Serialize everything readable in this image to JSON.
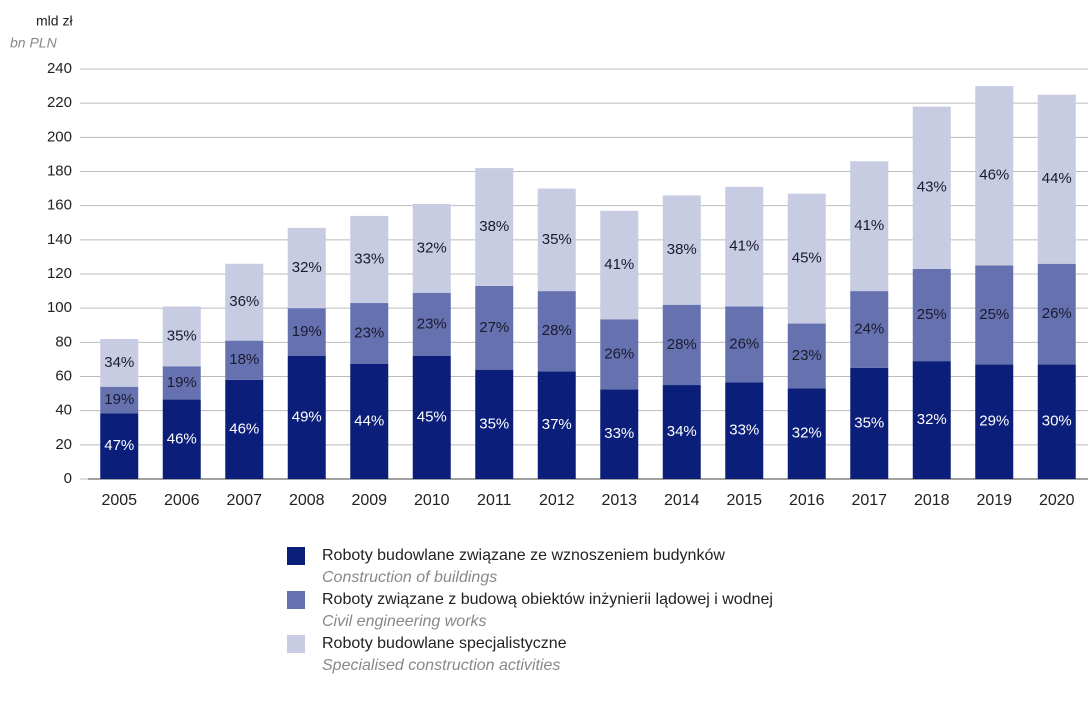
{
  "chart_data": {
    "type": "stacked_bar",
    "y_label": "mld zł",
    "y_label_en": "bn PLN",
    "categories": [
      "2005",
      "2006",
      "2007",
      "2008",
      "2009",
      "2010",
      "2011",
      "2012",
      "2013",
      "2014",
      "2015",
      "2016",
      "2017",
      "2018",
      "2019",
      "2020"
    ],
    "series": [
      {
        "name": "Roboty budowlane związane ze wznoszeniem budynków",
        "name_en": "Construction of buildings",
        "color": "#0b1f7a",
        "label_color": "#ffffff",
        "values": [
          38.5,
          46.5,
          58,
          72,
          67.5,
          72,
          64,
          63,
          52.5,
          55,
          56.5,
          53,
          65,
          69,
          67,
          67
        ],
        "share_labels": [
          "47%",
          "46%",
          "46%",
          "49%",
          "44%",
          "45%",
          "35%",
          "37%",
          "33%",
          "34%",
          "33%",
          "32%",
          "35%",
          "32%",
          "29%",
          "30%"
        ]
      },
      {
        "name": "Roboty związane z budową obiektów inżynierii lądowej i wodnej",
        "name_en": "Civil engineering works",
        "color": "#6672b0",
        "label_color": "#1a1a2e",
        "values": [
          15.5,
          19.5,
          23,
          28,
          35.5,
          37,
          49,
          47,
          41,
          47,
          44.5,
          38,
          45,
          54,
          58,
          59
        ],
        "share_labels": [
          "19%",
          "19%",
          "18%",
          "19%",
          "23%",
          "23%",
          "27%",
          "28%",
          "26%",
          "28%",
          "26%",
          "23%",
          "24%",
          "25%",
          "25%",
          "26%"
        ]
      },
      {
        "name": "Roboty budowlane specjalistyczne",
        "name_en": "Specialised construction activities",
        "color": "#c8cce3",
        "label_color": "#1a1a2e",
        "values": [
          28,
          35,
          45,
          47,
          51,
          52,
          69,
          60,
          63.5,
          64,
          70,
          76,
          76,
          95,
          105,
          99
        ],
        "share_labels": [
          "34%",
          "35%",
          "36%",
          "32%",
          "33%",
          "32%",
          "38%",
          "35%",
          "41%",
          "38%",
          "41%",
          "45%",
          "41%",
          "43%",
          "46%",
          "44%"
        ]
      }
    ],
    "ylim": [
      0,
      240
    ],
    "yticks": [
      0,
      20,
      40,
      60,
      80,
      100,
      120,
      140,
      160,
      180,
      200,
      220,
      240
    ],
    "grid": true
  }
}
